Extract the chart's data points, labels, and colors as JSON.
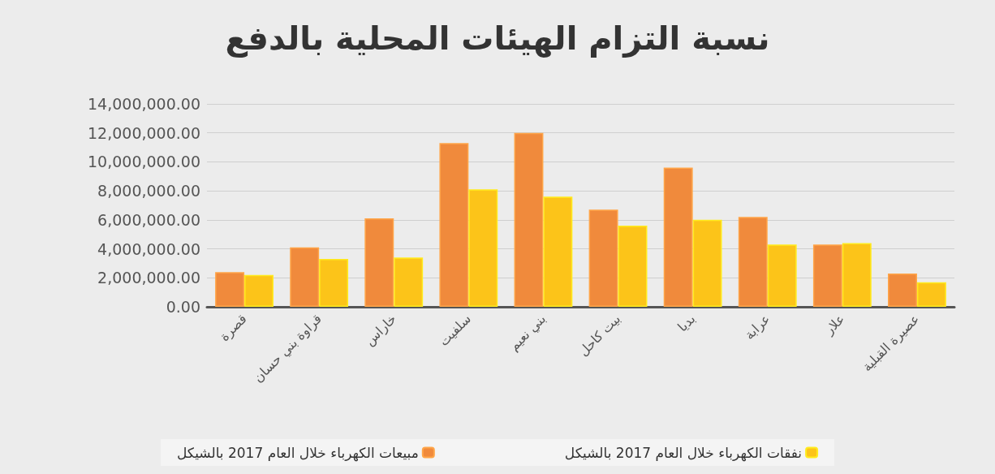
{
  "chart_data": {
    "type": "bar",
    "title": "نسبة التزام الهيئات المحلية بالدفع",
    "categories": [
      "قصرة",
      "قراوة بني حسان",
      "خاراس",
      "سلفيت",
      "بني نعيم",
      "بيت كاحل",
      "بديا",
      "عرابة",
      "علار",
      "عصيرة القبلية"
    ],
    "series": [
      {
        "name": "مبيعات الكهرباء خلال العام 2017 بالشيكل",
        "color": "#f08a3c",
        "values": [
          2400000,
          4100000,
          6100000,
          11300000,
          12000000,
          6700000,
          9600000,
          6200000,
          4300000,
          2300000
        ]
      },
      {
        "name": "نفقات الكهرباء خلال العام 2017 بالشيكل",
        "color": "#fcc419",
        "values": [
          2200000,
          3300000,
          3400000,
          8100000,
          7600000,
          5600000,
          6000000,
          4300000,
          4400000,
          1700000
        ]
      }
    ],
    "ylim": [
      0,
      14000000
    ],
    "yticks": [
      {
        "value": 0,
        "label": "0.00"
      },
      {
        "value": 2000000,
        "label": "2,000,000.00"
      },
      {
        "value": 4000000,
        "label": "4,000,000.00"
      },
      {
        "value": 6000000,
        "label": "6,000,000.00"
      },
      {
        "value": 8000000,
        "label": "8,000,000.00"
      },
      {
        "value": 10000000,
        "label": "10,000,000.00"
      },
      {
        "value": 12000000,
        "label": "12,000,000.00"
      },
      {
        "value": 14000000,
        "label": "14,000,000.00"
      }
    ],
    "grid": "y",
    "legend": "bottom"
  }
}
